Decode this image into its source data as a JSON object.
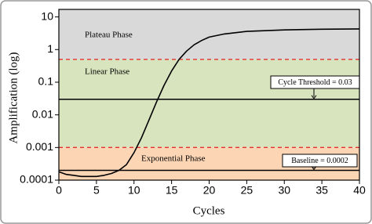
{
  "chart_data": {
    "type": "line",
    "log_y": true,
    "x_label": "Cycles",
    "y_label": "Amplification (log)",
    "x": [
      0,
      1,
      2,
      3,
      4,
      5,
      6,
      7,
      8,
      9,
      10,
      11,
      12,
      13,
      14,
      15,
      16,
      17,
      18,
      19,
      20,
      22,
      25,
      30,
      35,
      40
    ],
    "series": [
      {
        "color": "#000000",
        "values": [
          0.00018,
          0.00015,
          0.00014,
          0.00013,
          0.00013,
          0.00013,
          0.00014,
          0.00016,
          0.0002,
          0.0003,
          0.0007,
          0.002,
          0.007,
          0.025,
          0.08,
          0.22,
          0.5,
          0.9,
          1.4,
          1.9,
          2.4,
          3.0,
          3.6,
          4.0,
          4.2,
          4.3
        ]
      }
    ],
    "xlim": [
      0,
      40
    ],
    "xticks": [
      0,
      5,
      10,
      15,
      20,
      25,
      30,
      35,
      40
    ],
    "ylim": [
      0.0001,
      17
    ],
    "yticks": [
      0.0001,
      0.001,
      0.01,
      0.1,
      1,
      10
    ],
    "regions": [
      {
        "label": "Plateau Phase",
        "from": 0.5,
        "to": 17,
        "color": "#d9d9d9"
      },
      {
        "label": "Linear Phase",
        "from": 0.001,
        "to": 0.5,
        "color": "#d7e4bd"
      },
      {
        "label": "Exponential Phase",
        "from": 0.0001,
        "to": 0.001,
        "color": "#fcd5b5"
      }
    ],
    "boundary_color": "#e53030",
    "reference_lines": [
      {
        "label": "Cycle Threshold = 0.03",
        "value": 0.03
      },
      {
        "label": "Baseline = 0.0002",
        "value": 0.0002
      }
    ]
  }
}
